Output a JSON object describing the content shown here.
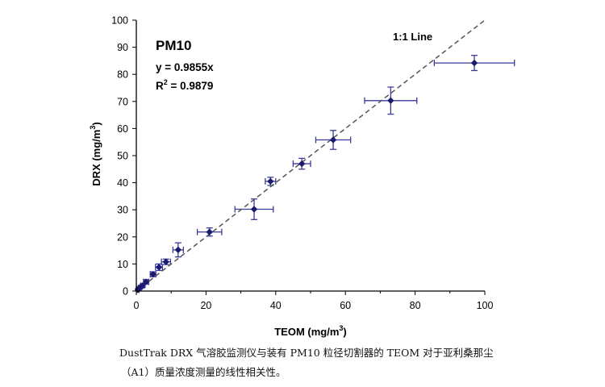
{
  "chart_data": {
    "type": "scatter",
    "xlabel": "TEOM (mg/m",
    "xlabel_sup": "3",
    "xlabel_end": ")",
    "ylabel": "DRX (mg/m",
    "ylabel_sup": "3",
    "ylabel_end": ")",
    "xlim": [
      0,
      100
    ],
    "ylim": [
      0,
      100
    ],
    "xticks": [
      "0",
      "20",
      "40",
      "60",
      "80",
      "100"
    ],
    "yticks": [
      "0",
      "10",
      "20",
      "30",
      "40",
      "50",
      "60",
      "70",
      "80",
      "90",
      "100"
    ],
    "annotation_title": "PM10",
    "annotation_eq": "y = 0.9855x",
    "annotation_r2_prefix": "R",
    "annotation_r2_sup": "2",
    "annotation_r2_suffix": " = 0.9879",
    "line_label": "1:1 Line",
    "grid": false,
    "colors": {
      "points": "#1a1a6e",
      "errorbars": "#3a3a9a",
      "oneToOne": "#555555",
      "axis": "#000000"
    },
    "points": [
      {
        "x": 0.5,
        "y": 0.5,
        "xerr": 0.3,
        "yerr": 0.4
      },
      {
        "x": 1.0,
        "y": 1.2,
        "xerr": 0.4,
        "yerr": 0.5
      },
      {
        "x": 1.8,
        "y": 2.0,
        "xerr": 0.5,
        "yerr": 0.6
      },
      {
        "x": 2.8,
        "y": 3.4,
        "xerr": 0.7,
        "yerr": 0.8
      },
      {
        "x": 4.8,
        "y": 6.2,
        "xerr": 0.8,
        "yerr": 0.9
      },
      {
        "x": 6.5,
        "y": 8.8,
        "xerr": 1.0,
        "yerr": 1.2
      },
      {
        "x": 8.5,
        "y": 10.8,
        "xerr": 1.3,
        "yerr": 1.0
      },
      {
        "x": 12.0,
        "y": 15.2,
        "xerr": 1.5,
        "yerr": 2.6
      },
      {
        "x": 21.0,
        "y": 21.8,
        "xerr": 3.5,
        "yerr": 1.5
      },
      {
        "x": 33.8,
        "y": 30.2,
        "xerr": 5.5,
        "yerr": 3.8
      },
      {
        "x": 38.5,
        "y": 40.5,
        "xerr": 1.5,
        "yerr": 1.5
      },
      {
        "x": 47.5,
        "y": 47.0,
        "xerr": 2.5,
        "yerr": 2.0
      },
      {
        "x": 56.5,
        "y": 55.8,
        "xerr": 5.0,
        "yerr": 3.5
      },
      {
        "x": 73.0,
        "y": 70.3,
        "xerr": 7.5,
        "yerr": 5.0
      },
      {
        "x": 97.0,
        "y": 84.2,
        "xerr": 11.5,
        "yerr": 2.8
      }
    ]
  },
  "caption": {
    "line1": "DustTrak DRX 气溶胶监测仪与装有 PM10 粒径切割器的 TEOM 对于亚利桑那尘",
    "line2": "（A1）质量浓度测量的线性相关性。"
  }
}
